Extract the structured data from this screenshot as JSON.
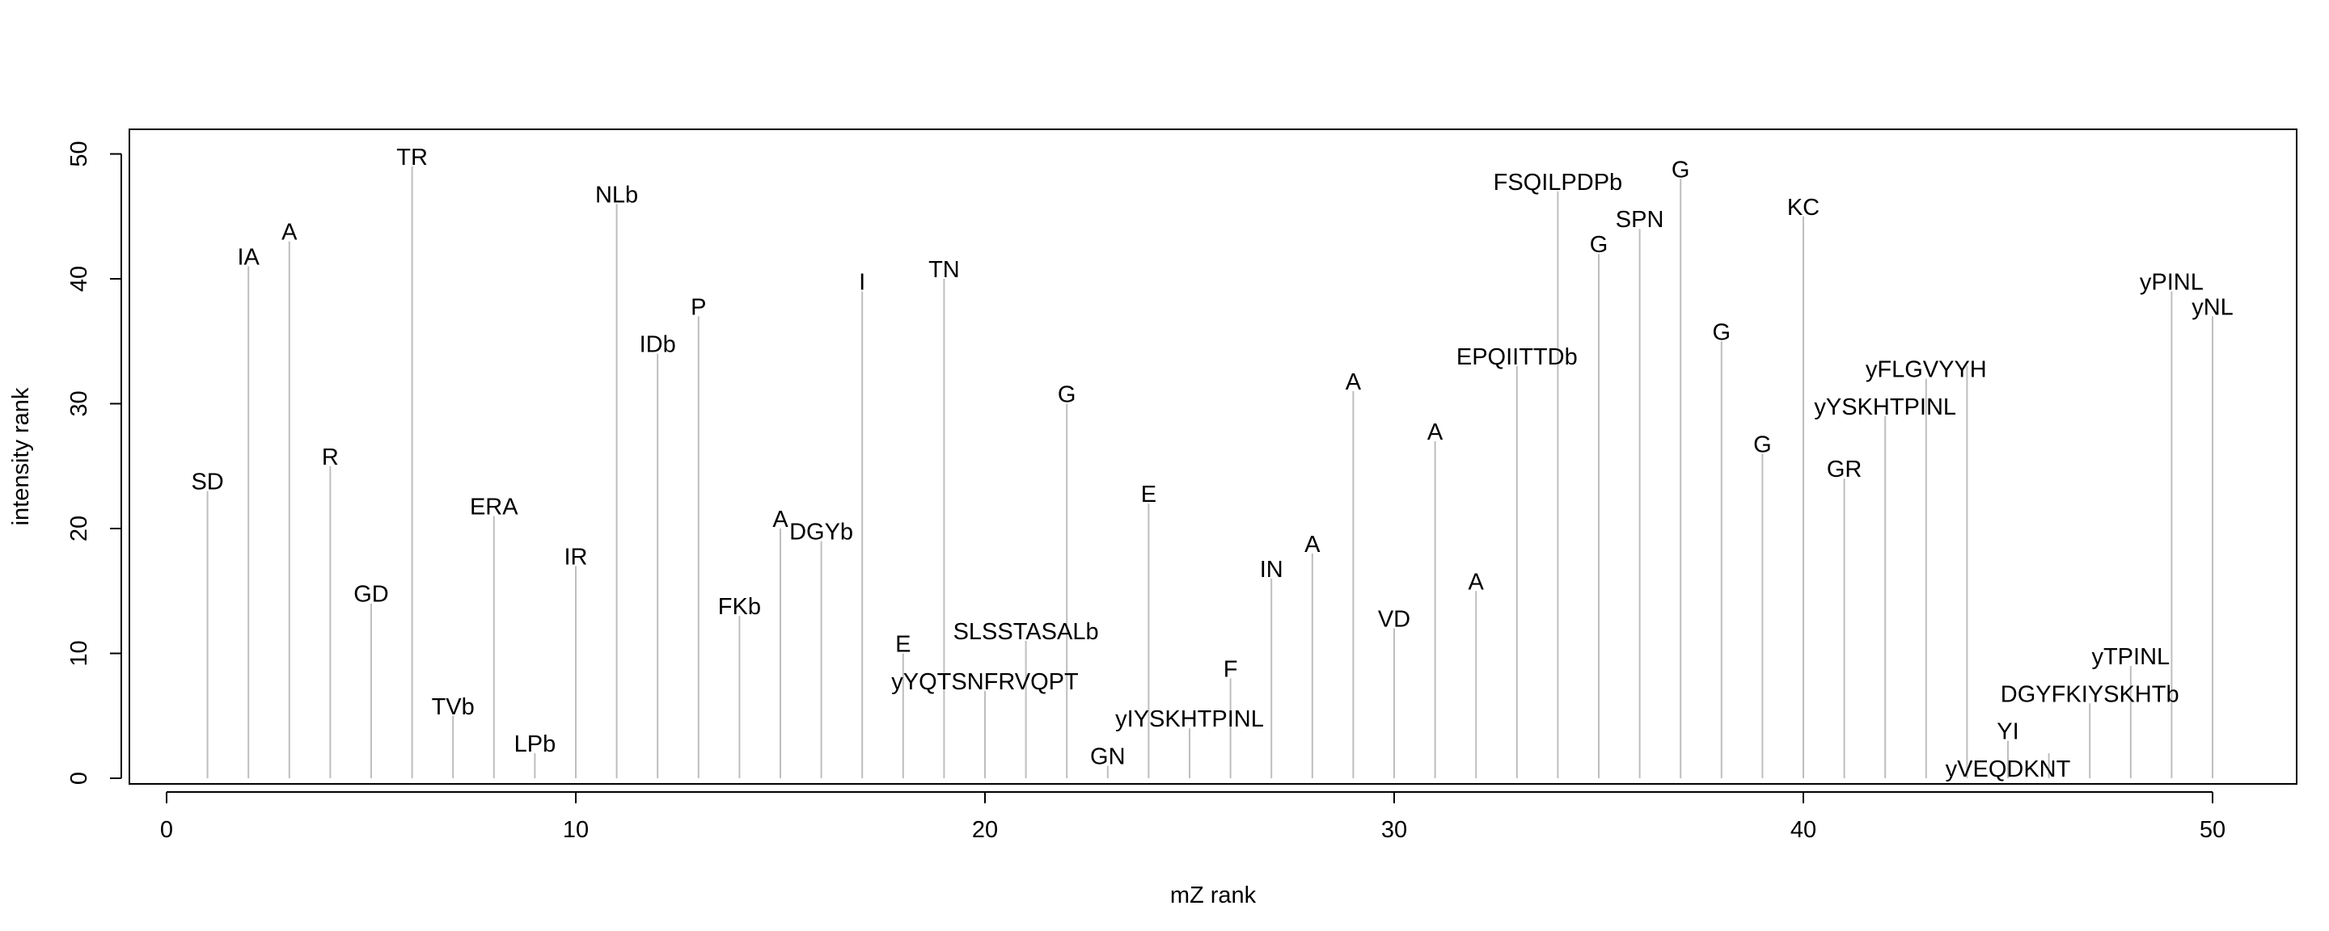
{
  "chart_data": {
    "type": "bar",
    "style": "vertical stems (histogram-like lines) with text labels at top",
    "xlabel": "mZ rank",
    "ylabel": "intensity rank",
    "xlim": [
      0,
      52
    ],
    "ylim": [
      0,
      51
    ],
    "xticks": [
      0,
      10,
      20,
      30,
      40,
      50
    ],
    "yticks": [
      0,
      10,
      20,
      30,
      40,
      50
    ],
    "grid": false,
    "colors": {
      "stem": "#bebebe",
      "text": "#000000"
    },
    "points": [
      {
        "x": 1,
        "y": 23,
        "label": "SD"
      },
      {
        "x": 2,
        "y": 41,
        "label": "IA"
      },
      {
        "x": 3,
        "y": 43,
        "label": "A"
      },
      {
        "x": 4,
        "y": 25,
        "label": "R"
      },
      {
        "x": 5,
        "y": 14,
        "label": "GD"
      },
      {
        "x": 6,
        "y": 49,
        "label": "TR"
      },
      {
        "x": 7,
        "y": 5,
        "label": "TVb"
      },
      {
        "x": 8,
        "y": 21,
        "label": "ERA"
      },
      {
        "x": 9,
        "y": 2,
        "label": "LPb"
      },
      {
        "x": 10,
        "y": 17,
        "label": "IR"
      },
      {
        "x": 11,
        "y": 46,
        "label": "NLb"
      },
      {
        "x": 12,
        "y": 34,
        "label": "IDb"
      },
      {
        "x": 13,
        "y": 37,
        "label": "P"
      },
      {
        "x": 14,
        "y": 13,
        "label": "FKb"
      },
      {
        "x": 15,
        "y": 20,
        "label": "A"
      },
      {
        "x": 16,
        "y": 19,
        "label": "DGYb"
      },
      {
        "x": 17,
        "y": 39,
        "label": "I"
      },
      {
        "x": 18,
        "y": 10,
        "label": "E"
      },
      {
        "x": 19,
        "y": 40,
        "label": "TN"
      },
      {
        "x": 20,
        "y": 7,
        "label": "yYQTSNFRVQPT"
      },
      {
        "x": 21,
        "y": 11,
        "label": "SLSSTASALb"
      },
      {
        "x": 22,
        "y": 30,
        "label": "G"
      },
      {
        "x": 23,
        "y": 1,
        "label": "GN"
      },
      {
        "x": 24,
        "y": 22,
        "label": "E"
      },
      {
        "x": 25,
        "y": 4,
        "label": "yIYSKHTPINL"
      },
      {
        "x": 26,
        "y": 8,
        "label": "F"
      },
      {
        "x": 27,
        "y": 16,
        "label": "IN"
      },
      {
        "x": 28,
        "y": 18,
        "label": "A"
      },
      {
        "x": 29,
        "y": 31,
        "label": "A"
      },
      {
        "x": 30,
        "y": 12,
        "label": "VD"
      },
      {
        "x": 31,
        "y": 27,
        "label": "A"
      },
      {
        "x": 32,
        "y": 15,
        "label": "A"
      },
      {
        "x": 33,
        "y": 33,
        "label": "EPQIITTDb"
      },
      {
        "x": 34,
        "y": 47,
        "label": "FSQILPDPb"
      },
      {
        "x": 35,
        "y": 42,
        "label": "G"
      },
      {
        "x": 36,
        "y": 44,
        "label": "SPN"
      },
      {
        "x": 37,
        "y": 48,
        "label": "G"
      },
      {
        "x": 38,
        "y": 35,
        "label": "G"
      },
      {
        "x": 39,
        "y": 26,
        "label": "G"
      },
      {
        "x": 40,
        "y": 45,
        "label": "KC"
      },
      {
        "x": 41,
        "y": 24,
        "label": "GR"
      },
      {
        "x": 42,
        "y": 29,
        "label": "yYSKHTPINL"
      },
      {
        "x": 43,
        "y": 32,
        "label": "yFLGVYYH"
      },
      {
        "x": 45,
        "y": 0,
        "label": "yVEQDKNT"
      },
      {
        "x": 45,
        "y": 3,
        "label": "YI"
      },
      {
        "x": 47,
        "y": 6,
        "label": "DGYFKIYSKHTb"
      },
      {
        "x": 48,
        "y": 9,
        "label": "yTPINL"
      },
      {
        "x": 49,
        "y": 39,
        "label": "yPINL"
      },
      {
        "x": 50,
        "y": 37,
        "label": "yNL"
      }
    ],
    "unlabeled_stems": [
      {
        "x": 44,
        "y": 33
      },
      {
        "x": 46,
        "y": 2
      }
    ]
  }
}
